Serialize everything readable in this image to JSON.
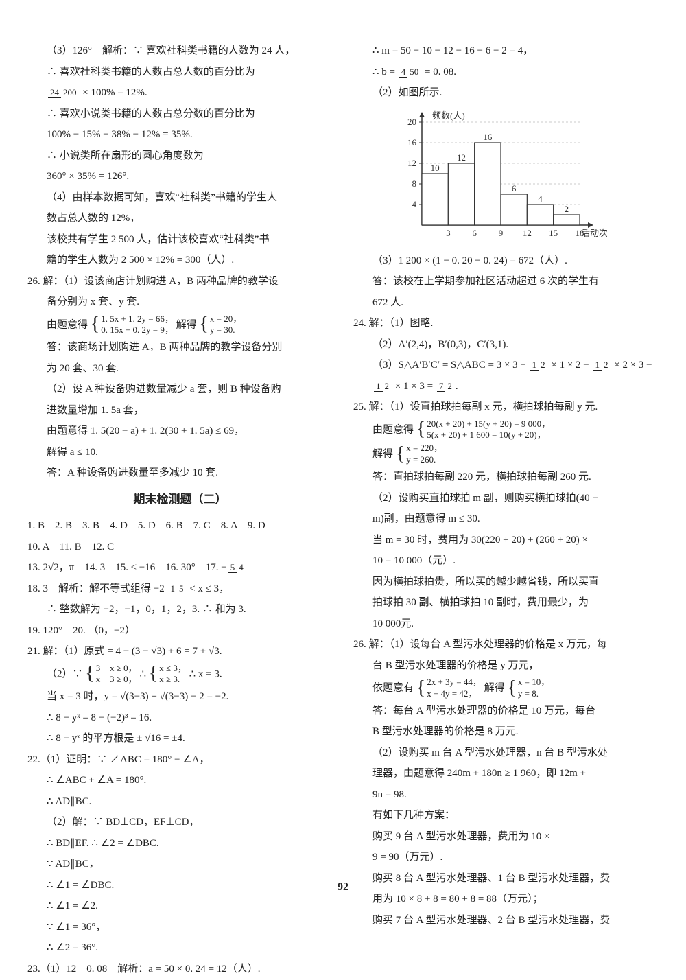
{
  "pageNumber": "92",
  "left": {
    "l1": "（3）126°　解析：∵ 喜欢社科类书籍的人数为 24 人，",
    "l2": "∴ 喜欢社科类书籍的人数占总人数的百分比为",
    "l3a": "24",
    "l3b": "200",
    "l3c": " × 100% = 12%.",
    "l4": "∴ 喜欢小说类书籍的人数占总分数的百分比为",
    "l5": "100% − 15% − 38% − 12% = 35%.",
    "l6": "∴ 小说类所在扇形的圆心角度数为",
    "l7": "360° × 35% = 126°.",
    "l8": "（4）由样本数据可知，喜欢“社科类”书籍的学生人",
    "l9": "数占总人数的 12%，",
    "l10": "该校共有学生 2 500 人，估计该校喜欢“社科类”书",
    "l11": "籍的学生人数为 2 500 × 12% = 300（人）.",
    "q26": "26. 解：（1）设该商店计划购进 A，B 两种品牌的教学设",
    "q26a": "备分别为 x 套、y 套.",
    "q26b_pre": "由题意得",
    "q26b_1": "1. 5x + 1. 2y = 66，",
    "q26b_2": "0. 15x + 0. 2y = 9，",
    "q26b_mid": "解得",
    "q26b_3": "x = 20，",
    "q26b_4": "y = 30.",
    "q26c": "答：该商场计划购进 A，B 两种品牌的教学设备分别",
    "q26d": "为 20 套、30 套.",
    "q26e": "（2）设 A 种设备购进数量减少 a 套，则 B 种设备购",
    "q26f": "进数量增加 1. 5a 套，",
    "q26g": "由题意得 1. 5(20 − a) + 1. 2(30 + 1. 5a) ≤ 69，",
    "q26h": "解得 a ≤ 10.",
    "q26i": "答：A 种设备购进数量至多减少 10 套.",
    "title": "期末检测题（二）",
    "ans1": "1. B　2. B　3. B　4. D　5. D　6. B　7. C　8. A　9. D",
    "ans2": "10. A　11. B　12. C",
    "ans3_pre": "13. 2√2，π　14. 3　15. ≤ −16　16. 30°　17. −",
    "ans3_n": "5",
    "ans3_d": "4",
    "q18_pre": "18. 3　解析：解不等式组得 −2 ",
    "q18_n": "1",
    "q18_d": "5",
    "q18_post": " < x ≤ 3，",
    "q18b": "∴ 整数解为 −2，−1，0，1，2，3. ∴ 和为 3.",
    "q19": "19. 120°　20. （0，−2）",
    "q21": "21. 解：（1）原式 = 4 − (3 − √3) + 6 = 7 + √3.",
    "q21b_pre": "（2）∵ ",
    "q21b_1": "3 − x ≥ 0，",
    "q21b_2": "x − 3 ≥ 0，",
    "q21b_mid": "∴ ",
    "q21b_3": "x ≤ 3，",
    "q21b_4": "x ≥ 3.",
    "q21b_post": " ∴ x = 3.",
    "q21c": "当 x = 3 时，y = √(3−3) + √(3−3) − 2 = −2.",
    "q21d": "∴ 8 − yˣ = 8 − (−2)³ = 16.",
    "q21e": "∴ 8 − yˣ 的平方根是 ± √16 = ±4.",
    "q22": "22.（1）证明：∵ ∠ABC = 180° − ∠A，",
    "q22a": "∴ ∠ABC + ∠A = 180°.",
    "q22b": "∴ AD∥BC.",
    "q22c": "（2）解：∵ BD⊥CD，EF⊥CD，",
    "q22d": "∴ BD∥EF. ∴ ∠2 = ∠DBC.",
    "q22e": "∵ AD∥BC，",
    "q22f": "∴ ∠1 = ∠DBC.",
    "q22g": "∴ ∠1 = ∠2.",
    "q22h": "∵ ∠1 = 36°，",
    "q22i": "∴ ∠2 = 36°.",
    "q23": "23.（1）12　0. 08　解析：a = 50 × 0. 24 = 12（人）."
  },
  "right": {
    "r1": "∴ m = 50 − 10 − 12 − 16 − 6 − 2 = 4，",
    "r2_pre": "∴ b = ",
    "r2_n": "4",
    "r2_d": "50",
    "r2_post": " = 0. 08.",
    "r3": "（2）如图所示.",
    "chart": {
      "yLabel": "频数(人)",
      "xLabel": "活动次数",
      "yTicks": [
        "4",
        "8",
        "12",
        "16",
        "20"
      ],
      "xTicks": [
        "3",
        "6",
        "9",
        "12",
        "15",
        "18"
      ],
      "bars": [
        {
          "x": 0,
          "h": 10,
          "label": "10"
        },
        {
          "x": 1,
          "h": 12,
          "label": "12"
        },
        {
          "x": 2,
          "h": 16,
          "label": "16"
        },
        {
          "x": 3,
          "h": 6,
          "label": "6"
        },
        {
          "x": 4,
          "h": 4,
          "label": "4"
        },
        {
          "x": 5,
          "h": 2,
          "label": "2"
        }
      ],
      "yMax": 20,
      "axisColor": "#333",
      "barFill": "#ffffff",
      "barStroke": "#333",
      "fontSize": 13
    },
    "r4": "（3）1 200 × (1 − 0. 20 − 0. 24) = 672（人）.",
    "r5": "答：该校在上学期参加社区活动超过 6 次的学生有",
    "r6": "672 人.",
    "q24": "24. 解：（1）图略.",
    "q24a": "（2）A′(2,4)，B′(0,3)，C′(3,1).",
    "q24b_pre": "（3）S△A′B′C′ = S△ABC = 3 × 3 − ",
    "q24b_f1n": "1",
    "q24b_f1d": "2",
    "q24b_m1": " × 1 × 2 − ",
    "q24b_f2n": "1",
    "q24b_f2d": "2",
    "q24b_m2": " × 2 × 3 − ",
    "q24c_f1n": "1",
    "q24c_f1d": "2",
    "q24c_m": " × 1 × 3 = ",
    "q24c_f2n": "7",
    "q24c_f2d": "2",
    "q24c_post": ".",
    "q25": "25. 解：（1）设直拍球拍每副 x 元，横拍球拍每副 y 元.",
    "q25a_pre": "由题意得",
    "q25a_1": "20(x + 20) + 15(y + 20) = 9 000，",
    "q25a_2": "5(x + 20) + 1 600 = 10(y + 20)，",
    "q25b_pre": "解得",
    "q25b_1": "x = 220，",
    "q25b_2": "y = 260.",
    "q25c": "答：直拍球拍每副 220 元，横拍球拍每副 260 元.",
    "q25d": "（2）设购买直拍球拍 m 副，则购买横拍球拍(40 −",
    "q25e": "m)副，由题意得 m ≤ 30.",
    "q25f": "当 m = 30 时，费用为 30(220 + 20) + (260 + 20) ×",
    "q25g": "10 = 10 000（元）.",
    "q25h": "因为横拍球拍贵，所以买的越少越省钱，所以买直",
    "q25i": "拍球拍 30 副、横拍球拍 10 副时，费用最少，为",
    "q25j": "10 000元.",
    "q26": "26. 解：（1）设每台 A 型污水处理器的价格是 x 万元，每",
    "q26a": "台 B 型污水处理器的价格是 y 万元，",
    "q26b_pre": "依题意有",
    "q26b_1": "2x + 3y = 44，",
    "q26b_2": "x + 4y = 42，",
    "q26b_mid": "解得",
    "q26b_3": "x = 10，",
    "q26b_4": "y = 8.",
    "q26c": "答：每台 A 型污水处理器的价格是 10 万元，每台",
    "q26d": "B 型污水处理器的价格是 8 万元.",
    "q26e": "（2）设购买 m 台 A 型污水处理器，n 台 B 型污水处",
    "q26f": "理器，由题意得 240m + 180n ≥ 1 960，即 12m +",
    "q26g": "9n = 98.",
    "q26h": "有如下几种方案：",
    "q26i": "购买 9 台 A 型污水处理器，费用为 10 ×",
    "q26j": "9 = 90（万元）.",
    "q26k": "购买 8 台 A 型污水处理器、1 台 B 型污水处理器，费",
    "q26l": "用为 10 × 8 + 8 = 80 + 8 = 88（万元）；",
    "q26m": "购买 7 台 A 型污水处理器、2 台 B 型污水处理器，费"
  }
}
